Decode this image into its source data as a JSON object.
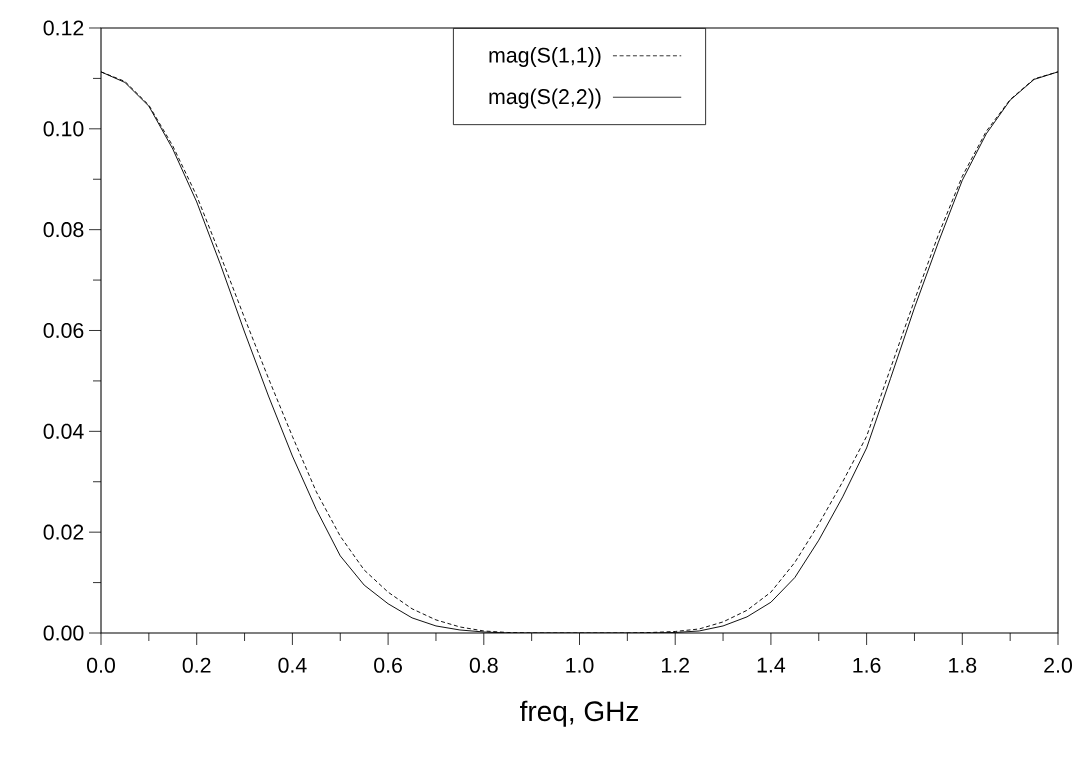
{
  "chart_data": {
    "type": "line",
    "xlabel": "freq, GHz",
    "xlim": [
      0,
      2
    ],
    "ylim": [
      0,
      0.12
    ],
    "xticks": [
      {
        "value": 0,
        "label": "0.0"
      },
      {
        "value": 0.2,
        "label": "0.2"
      },
      {
        "value": 0.4,
        "label": "0.4"
      },
      {
        "value": 0.6,
        "label": "0.6"
      },
      {
        "value": 0.8,
        "label": "0.8"
      },
      {
        "value": 1,
        "label": "1.0"
      },
      {
        "value": 1.2,
        "label": "1.2"
      },
      {
        "value": 1.4,
        "label": "1.4"
      },
      {
        "value": 1.6,
        "label": "1.6"
      },
      {
        "value": 1.8,
        "label": "1.8"
      },
      {
        "value": 2,
        "label": "2.0"
      }
    ],
    "yticks": [
      {
        "value": 0,
        "label": "0.00"
      },
      {
        "value": 0.02,
        "label": "0.02"
      },
      {
        "value": 0.04,
        "label": "0.04"
      },
      {
        "value": 0.06,
        "label": "0.06"
      },
      {
        "value": 0.08,
        "label": "0.08"
      },
      {
        "value": 0.1,
        "label": "0.10"
      },
      {
        "value": 0.12,
        "label": "0.12"
      }
    ],
    "x": [
      0,
      0.05,
      0.1,
      0.15,
      0.2,
      0.25,
      0.3,
      0.35,
      0.4,
      0.45,
      0.5,
      0.55,
      0.6,
      0.65,
      0.7,
      0.75,
      0.8,
      0.85,
      0.9,
      1.0,
      1.1,
      1.15,
      1.2,
      1.25,
      1.3,
      1.35,
      1.4,
      1.45,
      1.5,
      1.55,
      1.6,
      1.65,
      1.7,
      1.75,
      1.8,
      1.85,
      1.9,
      1.95,
      2.0
    ],
    "series": [
      {
        "name": "mag(S(1,1))",
        "color": "#000000",
        "line_style": "dashed",
        "values": [
          0.1113,
          0.1094,
          0.1047,
          0.0966,
          0.0867,
          0.0748,
          0.0625,
          0.0505,
          0.039,
          0.028,
          0.0192,
          0.0125,
          0.0081,
          0.0048,
          0.0026,
          0.0012,
          0.0004,
          0.0001,
          0,
          0,
          0,
          0.0001,
          0.0003,
          0.0008,
          0.0022,
          0.0045,
          0.0081,
          0.014,
          0.0216,
          0.03,
          0.039,
          0.0525,
          0.066,
          0.079,
          0.0906,
          0.0995,
          0.1058,
          0.1099,
          0.1113
        ]
      },
      {
        "name": "mag(S(2,2))",
        "color": "#000000",
        "line_style": "solid",
        "values": [
          0.1113,
          0.1092,
          0.1045,
          0.096,
          0.0855,
          0.073,
          0.0597,
          0.047,
          0.0351,
          0.0245,
          0.0153,
          0.0095,
          0.0058,
          0.003,
          0.0014,
          0.0006,
          0.0002,
          0,
          0,
          0,
          0,
          0,
          0.0001,
          0.0004,
          0.0014,
          0.0032,
          0.0061,
          0.011,
          0.0184,
          0.027,
          0.0367,
          0.0505,
          0.0645,
          0.0775,
          0.0898,
          0.099,
          0.1057,
          0.1098,
          0.1113
        ]
      }
    ],
    "legend": "top",
    "grid": false,
    "marker": "none"
  }
}
